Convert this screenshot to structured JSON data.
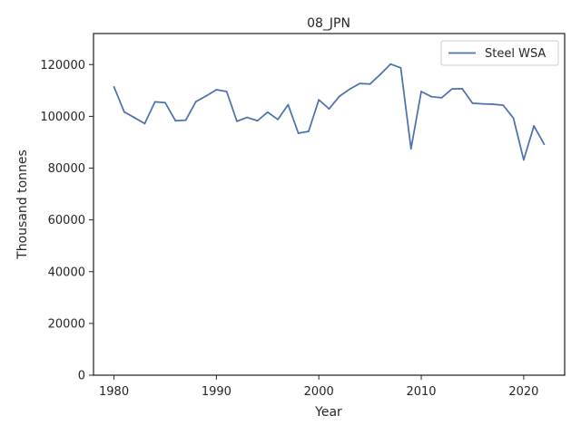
{
  "chart_data": {
    "type": "line",
    "title": "08_JPN",
    "xlabel": "Year",
    "ylabel": "Thousand tonnes",
    "xlim": [
      1978,
      2024
    ],
    "ylim": [
      0,
      132000
    ],
    "xticks": [
      1980,
      1990,
      2000,
      2010,
      2020
    ],
    "yticks": [
      0,
      20000,
      40000,
      60000,
      80000,
      100000,
      120000
    ],
    "grid": false,
    "legend_position": "top-right",
    "series": [
      {
        "name": "Steel WSA",
        "color": "#4c72b0",
        "x": [
          1980,
          1981,
          1982,
          1983,
          1984,
          1985,
          1986,
          1987,
          1988,
          1989,
          1990,
          1991,
          1992,
          1993,
          1994,
          1995,
          1996,
          1997,
          1998,
          1999,
          2000,
          2001,
          2002,
          2003,
          2004,
          2005,
          2006,
          2007,
          2008,
          2009,
          2010,
          2011,
          2012,
          2013,
          2014,
          2015,
          2016,
          2017,
          2018,
          2019,
          2020,
          2021,
          2022
        ],
        "values": [
          111400,
          101700,
          99500,
          97200,
          105600,
          105300,
          98300,
          98500,
          105700,
          107900,
          110300,
          109600,
          98100,
          99600,
          98300,
          101600,
          98800,
          104500,
          93500,
          94200,
          106400,
          102900,
          107700,
          110500,
          112700,
          112500,
          116200,
          120200,
          118700,
          87500,
          109600,
          107600,
          107200,
          110600,
          110700,
          105100,
          104800,
          104700,
          104300,
          99300,
          83200,
          96300,
          89200
        ]
      }
    ]
  }
}
